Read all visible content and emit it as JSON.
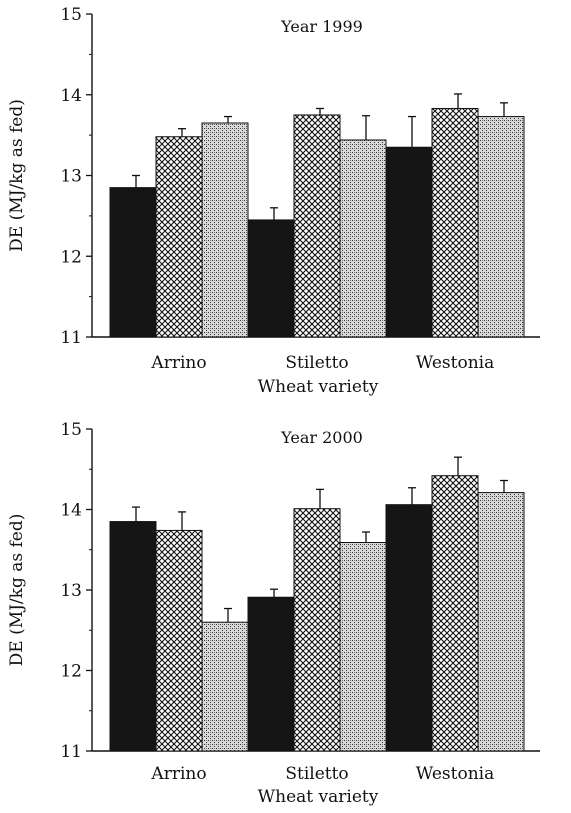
{
  "chart_data": [
    {
      "type": "bar",
      "title": "Year 1999",
      "xlabel": "Wheat variety",
      "ylabel": "DE (MJ/kg as fed)",
      "categories": [
        "Arrino",
        "Stiletto",
        "Westonia"
      ],
      "ylim": [
        11,
        15
      ],
      "yticks": [
        11,
        12,
        13,
        14,
        15
      ],
      "series": [
        {
          "values": [
            12.85,
            12.45,
            13.35
          ],
          "errors": [
            0.15,
            0.15,
            0.38
          ],
          "fill": "solid-black"
        },
        {
          "values": [
            13.48,
            13.75,
            13.83
          ],
          "errors": [
            0.1,
            0.08,
            0.18
          ],
          "fill": "crosshatch"
        },
        {
          "values": [
            13.65,
            13.44,
            13.73
          ],
          "errors": [
            0.08,
            0.3,
            0.17
          ],
          "fill": "stipple"
        }
      ],
      "grid": false,
      "legend": "none"
    },
    {
      "type": "bar",
      "title": "Year 2000",
      "xlabel": "Wheat variety",
      "ylabel": "DE (MJ/kg as fed)",
      "categories": [
        "Arrino",
        "Stiletto",
        "Westonia"
      ],
      "ylim": [
        11,
        15
      ],
      "yticks": [
        11,
        12,
        13,
        14,
        15
      ],
      "series": [
        {
          "values": [
            13.85,
            12.91,
            14.06
          ],
          "errors": [
            0.18,
            0.1,
            0.21
          ],
          "fill": "solid-black"
        },
        {
          "values": [
            13.74,
            14.01,
            14.42
          ],
          "errors": [
            0.23,
            0.24,
            0.23
          ],
          "fill": "crosshatch"
        },
        {
          "values": [
            12.6,
            13.59,
            14.21
          ],
          "errors": [
            0.17,
            0.13,
            0.15
          ],
          "fill": "stipple"
        }
      ],
      "grid": false,
      "legend": "none"
    }
  ]
}
